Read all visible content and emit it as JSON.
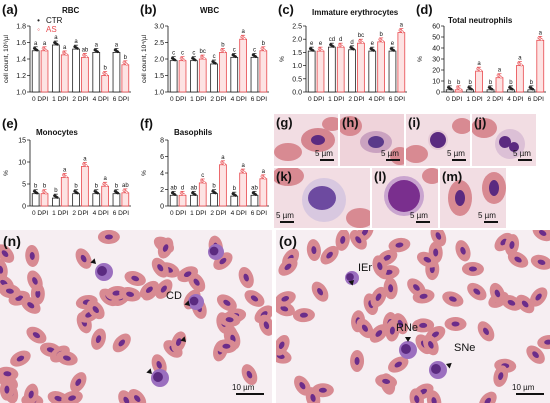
{
  "legend": {
    "items": [
      {
        "label": "CTR",
        "symbol": "•",
        "color": "#222222"
      },
      {
        "label": "AS",
        "symbol": "◦",
        "color": "#e8484d"
      }
    ]
  },
  "colors": {
    "ctr_stroke": "#222222",
    "as_stroke": "#e8484d",
    "as_fill": "#fde3e3",
    "cell_bg": "#f3d7da",
    "erythrocyte": "#d88a92",
    "nucleus": "#6b2d8a"
  },
  "panels": [
    {
      "label": "(a)",
      "title": "RBC"
    },
    {
      "label": "(b)",
      "title": "WBC"
    },
    {
      "label": "(c)",
      "title": "Immature erythrocytes"
    },
    {
      "label": "(d)",
      "title": "Total neutrophils"
    },
    {
      "label": "(e)",
      "title": "Monocytes"
    },
    {
      "label": "(f)",
      "title": "Basophils"
    }
  ],
  "chart_data": [
    {
      "type": "bar",
      "title": "RBC",
      "ylabel": "cell count, 10⁶/µl",
      "categories": [
        "0 DPI",
        "1 DPI",
        "2 DPI",
        "4 DPI",
        "6 DPI"
      ],
      "ylim": [
        1.0,
        1.8
      ],
      "yticks": [
        "1.0",
        "1.2",
        "1.4",
        "1.6",
        "1.8"
      ],
      "series": [
        {
          "name": "CTR",
          "values": [
            1.5,
            1.57,
            1.52,
            1.48,
            1.48
          ],
          "letters": [
            "a",
            "a",
            "a",
            "a",
            "a"
          ]
        },
        {
          "name": "AS",
          "values": [
            1.5,
            1.45,
            1.42,
            1.2,
            1.33
          ],
          "letters": [
            "a",
            "a",
            "ab",
            "b",
            "b"
          ]
        }
      ]
    },
    {
      "type": "bar",
      "title": "WBC",
      "ylabel": "cell count, 10⁴/µl",
      "categories": [
        "0 DPI",
        "1 DPI",
        "2 DPI",
        "4 DPI",
        "6 DPI"
      ],
      "ylim": [
        1.0,
        3.0
      ],
      "yticks": [
        "1.0",
        "1.5",
        "2.0",
        "2.5",
        "3.0"
      ],
      "series": [
        {
          "name": "CTR",
          "values": [
            1.95,
            1.95,
            1.85,
            2.05,
            2.05
          ],
          "letters": [
            "c",
            "c",
            "c",
            "c",
            "c"
          ]
        },
        {
          "name": "AS",
          "values": [
            1.95,
            2.0,
            2.2,
            2.6,
            2.25
          ],
          "letters": [
            "c",
            "bc",
            "b",
            "a",
            "b"
          ]
        }
      ]
    },
    {
      "type": "bar",
      "title": "Immature erythrocytes",
      "ylabel": "%",
      "categories": [
        "0 DPI",
        "1 DPI",
        "2 DPI",
        "4 DPI",
        "6 DPI"
      ],
      "ylim": [
        0.0,
        2.5
      ],
      "yticks": [
        "0.0",
        "0.5",
        "1.0",
        "1.5",
        "2.0",
        "2.5"
      ],
      "series": [
        {
          "name": "CTR",
          "values": [
            1.55,
            1.7,
            1.6,
            1.55,
            1.55
          ],
          "letters": [
            "e",
            "cd",
            "d",
            "e",
            "e"
          ]
        },
        {
          "name": "AS",
          "values": [
            1.55,
            1.7,
            1.85,
            1.9,
            2.25
          ],
          "letters": [
            "e",
            "d",
            "bc",
            "b",
            "a"
          ]
        }
      ]
    },
    {
      "type": "bar",
      "title": "Total neutrophils",
      "ylabel": "%",
      "categories": [
        "0 DPI",
        "1 DPI",
        "2 DPI",
        "4 DPI",
        "6 DPI"
      ],
      "ylim": [
        0,
        60
      ],
      "yticks": [
        "0",
        "10",
        "20",
        "30",
        "40",
        "50",
        "60"
      ],
      "series": [
        {
          "name": "CTR",
          "values": [
            2,
            2,
            2,
            2,
            2
          ],
          "letters": [
            "b",
            "b",
            "b",
            "b",
            "b"
          ]
        },
        {
          "name": "AS",
          "values": [
            2,
            19,
            13,
            24,
            47
          ],
          "letters": [
            "b",
            "a",
            "a",
            "a",
            "a"
          ]
        }
      ]
    },
    {
      "type": "bar",
      "title": "Monocytes",
      "ylabel": "%",
      "categories": [
        "0 DPI",
        "1 DPI",
        "2 DPI",
        "4 DPI",
        "6 DPI"
      ],
      "ylim": [
        0,
        15
      ],
      "yticks": [
        "0",
        "5",
        "10",
        "15"
      ],
      "series": [
        {
          "name": "CTR",
          "values": [
            2.8,
            1.8,
            2.8,
            2.8,
            2.8
          ],
          "letters": [
            "b",
            "b",
            "b",
            "b",
            "b"
          ]
        },
        {
          "name": "AS",
          "values": [
            2.8,
            6.5,
            9.0,
            4.5,
            3.0
          ],
          "letters": [
            "b",
            "a",
            "a",
            "a",
            "ab"
          ]
        }
      ]
    },
    {
      "type": "bar",
      "title": "Basophils",
      "ylabel": "%",
      "categories": [
        "0 DPI",
        "1 DPI",
        "2 DPI",
        "4 DPI",
        "6 DPI"
      ],
      "ylim": [
        0,
        8
      ],
      "yticks": [
        "0",
        "2",
        "4",
        "6",
        "8"
      ],
      "series": [
        {
          "name": "CTR",
          "values": [
            1.3,
            1.3,
            1.5,
            1.2,
            1.3
          ],
          "letters": [
            "ab",
            "ab",
            "b",
            "b",
            "ab"
          ]
        },
        {
          "name": "AS",
          "values": [
            1.3,
            2.8,
            5.0,
            4.0,
            3.3
          ],
          "letters": [
            "d",
            "c",
            "a",
            "a",
            "a"
          ]
        }
      ]
    }
  ],
  "micrographs": [
    {
      "label": "(g)",
      "scale": "5 µm"
    },
    {
      "label": "(h)",
      "scale": "5 µm"
    },
    {
      "label": "(i)",
      "scale": "5 µm"
    },
    {
      "label": "(j)",
      "scale": "5 µm"
    },
    {
      "label": "(k)",
      "scale": "5 µm"
    },
    {
      "label": "(l)",
      "scale": "5 µm"
    },
    {
      "label": "(m)",
      "scale": "5 µm"
    }
  ],
  "smears": [
    {
      "label": "(n)",
      "scale": "10 µm",
      "annotations": [
        "CD"
      ]
    },
    {
      "label": "(o)",
      "scale": "10 µm",
      "annotations": [
        "IEr",
        "RNe",
        "SNe"
      ]
    }
  ]
}
